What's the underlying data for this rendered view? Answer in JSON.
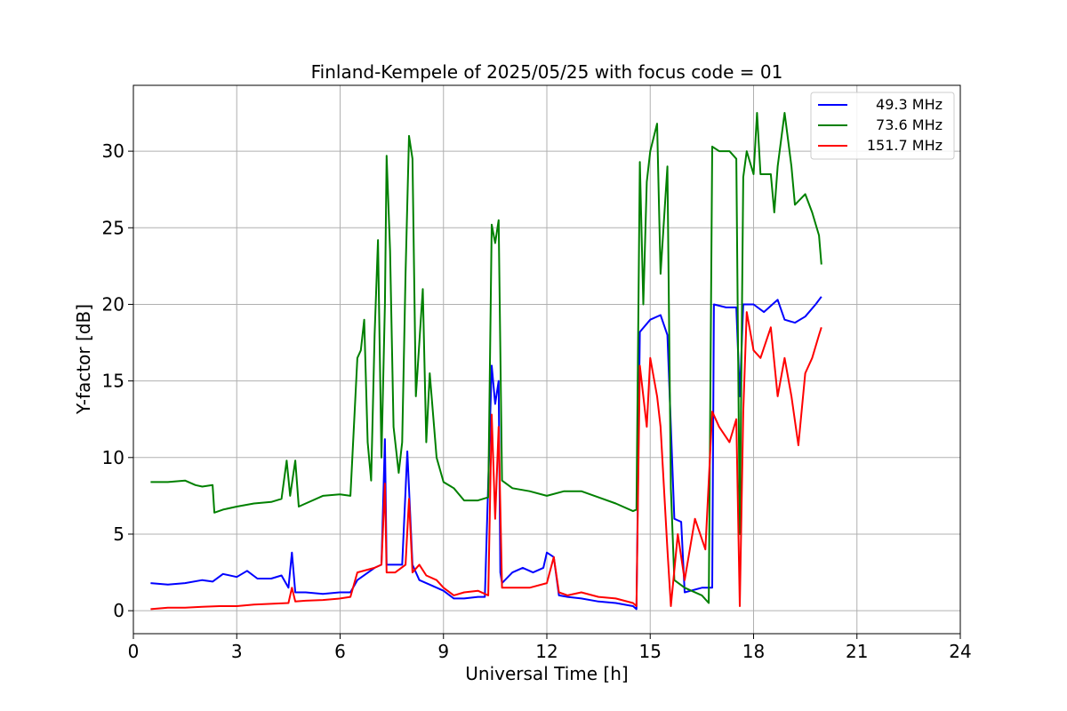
{
  "chart_data": {
    "type": "line",
    "title": "Finland-Kempele of 2025/05/25 with focus code = 01",
    "xlabel": "Universal Time [h]",
    "ylabel": "Y-factor [dB]",
    "xlim": [
      0,
      24
    ],
    "ylim": [
      -1.5,
      34.3
    ],
    "xticks": [
      0,
      3,
      6,
      9,
      12,
      15,
      18,
      21,
      24
    ],
    "yticks": [
      0,
      5,
      10,
      15,
      20,
      25,
      30
    ],
    "grid": true,
    "legend_position": "top-right",
    "series": [
      {
        "name": "49.3 MHz",
        "color": "#0000ff",
        "points": [
          [
            0.5,
            1.8
          ],
          [
            1.0,
            1.7
          ],
          [
            1.5,
            1.8
          ],
          [
            2.0,
            2.0
          ],
          [
            2.3,
            1.9
          ],
          [
            2.6,
            2.4
          ],
          [
            3.0,
            2.2
          ],
          [
            3.3,
            2.6
          ],
          [
            3.6,
            2.1
          ],
          [
            4.0,
            2.1
          ],
          [
            4.3,
            2.3
          ],
          [
            4.5,
            1.5
          ],
          [
            4.6,
            3.8
          ],
          [
            4.7,
            1.2
          ],
          [
            5.0,
            1.2
          ],
          [
            5.5,
            1.1
          ],
          [
            6.0,
            1.2
          ],
          [
            6.3,
            1.2
          ],
          [
            6.5,
            2.0
          ],
          [
            7.0,
            2.8
          ],
          [
            7.2,
            3.0
          ],
          [
            7.3,
            11.2
          ],
          [
            7.35,
            3.0
          ],
          [
            7.5,
            3.0
          ],
          [
            7.8,
            3.0
          ],
          [
            7.95,
            10.4
          ],
          [
            8.1,
            3.0
          ],
          [
            8.3,
            2.0
          ],
          [
            8.6,
            1.7
          ],
          [
            9.0,
            1.3
          ],
          [
            9.3,
            0.8
          ],
          [
            9.6,
            0.8
          ],
          [
            10.0,
            0.9
          ],
          [
            10.2,
            0.9
          ],
          [
            10.4,
            16.0
          ],
          [
            10.5,
            13.5
          ],
          [
            10.6,
            15.0
          ],
          [
            10.65,
            2.5
          ],
          [
            10.7,
            1.8
          ],
          [
            11.0,
            2.5
          ],
          [
            11.3,
            2.8
          ],
          [
            11.6,
            2.5
          ],
          [
            11.9,
            2.8
          ],
          [
            12.0,
            3.8
          ],
          [
            12.2,
            3.5
          ],
          [
            12.35,
            1.0
          ],
          [
            12.6,
            0.9
          ],
          [
            13.0,
            0.8
          ],
          [
            13.5,
            0.6
          ],
          [
            14.0,
            0.5
          ],
          [
            14.5,
            0.3
          ],
          [
            14.6,
            0.1
          ],
          [
            14.7,
            18.2
          ],
          [
            15.0,
            19.0
          ],
          [
            15.3,
            19.3
          ],
          [
            15.5,
            18.0
          ],
          [
            15.7,
            6.0
          ],
          [
            15.9,
            5.8
          ],
          [
            16.0,
            1.2
          ],
          [
            16.5,
            1.5
          ],
          [
            16.8,
            1.5
          ],
          [
            16.85,
            20.0
          ],
          [
            17.2,
            19.8
          ],
          [
            17.5,
            19.8
          ],
          [
            17.6,
            14.0
          ],
          [
            17.7,
            20.0
          ],
          [
            18.0,
            20.0
          ],
          [
            18.3,
            19.5
          ],
          [
            18.7,
            20.3
          ],
          [
            18.9,
            19.0
          ],
          [
            19.2,
            18.8
          ],
          [
            19.5,
            19.2
          ],
          [
            19.8,
            20.0
          ],
          [
            19.97,
            20.5
          ]
        ]
      },
      {
        "name": "73.6 MHz",
        "color": "#008000",
        "points": [
          [
            0.5,
            8.4
          ],
          [
            1.0,
            8.4
          ],
          [
            1.5,
            8.5
          ],
          [
            1.8,
            8.2
          ],
          [
            2.0,
            8.1
          ],
          [
            2.3,
            8.2
          ],
          [
            2.35,
            6.4
          ],
          [
            2.6,
            6.6
          ],
          [
            3.0,
            6.8
          ],
          [
            3.5,
            7.0
          ],
          [
            4.0,
            7.1
          ],
          [
            4.3,
            7.3
          ],
          [
            4.45,
            9.8
          ],
          [
            4.55,
            7.5
          ],
          [
            4.7,
            9.8
          ],
          [
            4.8,
            6.8
          ],
          [
            5.0,
            7.0
          ],
          [
            5.5,
            7.5
          ],
          [
            6.0,
            7.6
          ],
          [
            6.3,
            7.5
          ],
          [
            6.5,
            16.5
          ],
          [
            6.6,
            17.0
          ],
          [
            6.7,
            19.0
          ],
          [
            6.8,
            11.0
          ],
          [
            6.9,
            8.5
          ],
          [
            7.0,
            18.0
          ],
          [
            7.1,
            24.2
          ],
          [
            7.2,
            10.0
          ],
          [
            7.3,
            20.0
          ],
          [
            7.35,
            29.7
          ],
          [
            7.45,
            23.5
          ],
          [
            7.55,
            12.0
          ],
          [
            7.7,
            9.0
          ],
          [
            7.8,
            11.0
          ],
          [
            7.9,
            22.0
          ],
          [
            8.0,
            31.0
          ],
          [
            8.1,
            29.5
          ],
          [
            8.2,
            14.0
          ],
          [
            8.4,
            21.0
          ],
          [
            8.5,
            11.0
          ],
          [
            8.6,
            15.5
          ],
          [
            8.8,
            10.0
          ],
          [
            9.0,
            8.4
          ],
          [
            9.3,
            8.0
          ],
          [
            9.6,
            7.2
          ],
          [
            10.0,
            7.2
          ],
          [
            10.3,
            7.4
          ],
          [
            10.4,
            25.2
          ],
          [
            10.5,
            24.0
          ],
          [
            10.6,
            25.5
          ],
          [
            10.7,
            8.5
          ],
          [
            11.0,
            8.0
          ],
          [
            11.5,
            7.8
          ],
          [
            12.0,
            7.5
          ],
          [
            12.5,
            7.8
          ],
          [
            13.0,
            7.8
          ],
          [
            13.5,
            7.4
          ],
          [
            14.0,
            7.0
          ],
          [
            14.5,
            6.5
          ],
          [
            14.6,
            6.6
          ],
          [
            14.7,
            29.3
          ],
          [
            14.8,
            20.0
          ],
          [
            14.9,
            28.0
          ],
          [
            15.0,
            30.0
          ],
          [
            15.2,
            31.8
          ],
          [
            15.3,
            22.0
          ],
          [
            15.5,
            29.0
          ],
          [
            15.6,
            8.0
          ],
          [
            15.7,
            2.0
          ],
          [
            16.0,
            1.5
          ],
          [
            16.5,
            1.0
          ],
          [
            16.7,
            0.5
          ],
          [
            16.8,
            30.3
          ],
          [
            17.0,
            30.0
          ],
          [
            17.3,
            30.0
          ],
          [
            17.5,
            29.5
          ],
          [
            17.6,
            5.0
          ],
          [
            17.7,
            28.3
          ],
          [
            17.8,
            30.0
          ],
          [
            18.0,
            28.5
          ],
          [
            18.1,
            32.5
          ],
          [
            18.2,
            28.5
          ],
          [
            18.5,
            28.5
          ],
          [
            18.6,
            26.0
          ],
          [
            18.7,
            29.0
          ],
          [
            18.9,
            32.5
          ],
          [
            19.1,
            29.0
          ],
          [
            19.2,
            26.5
          ],
          [
            19.5,
            27.2
          ],
          [
            19.7,
            26.0
          ],
          [
            19.9,
            24.5
          ],
          [
            19.97,
            22.6
          ]
        ]
      },
      {
        "name": "151.7 MHz",
        "color": "#ff0000",
        "points": [
          [
            0.5,
            0.1
          ],
          [
            1.0,
            0.2
          ],
          [
            1.5,
            0.2
          ],
          [
            2.0,
            0.25
          ],
          [
            2.5,
            0.3
          ],
          [
            3.0,
            0.3
          ],
          [
            3.5,
            0.4
          ],
          [
            4.0,
            0.45
          ],
          [
            4.5,
            0.5
          ],
          [
            4.6,
            1.5
          ],
          [
            4.7,
            0.6
          ],
          [
            5.0,
            0.65
          ],
          [
            5.5,
            0.7
          ],
          [
            6.0,
            0.8
          ],
          [
            6.3,
            0.9
          ],
          [
            6.5,
            2.5
          ],
          [
            7.0,
            2.8
          ],
          [
            7.2,
            3.0
          ],
          [
            7.3,
            8.3
          ],
          [
            7.35,
            2.5
          ],
          [
            7.6,
            2.5
          ],
          [
            7.9,
            3.0
          ],
          [
            8.0,
            7.3
          ],
          [
            8.1,
            2.5
          ],
          [
            8.3,
            3.0
          ],
          [
            8.5,
            2.3
          ],
          [
            8.8,
            2.0
          ],
          [
            9.0,
            1.5
          ],
          [
            9.3,
            1.0
          ],
          [
            9.6,
            1.2
          ],
          [
            10.0,
            1.3
          ],
          [
            10.3,
            1.0
          ],
          [
            10.4,
            12.8
          ],
          [
            10.5,
            6.0
          ],
          [
            10.6,
            12.0
          ],
          [
            10.7,
            1.5
          ],
          [
            11.0,
            1.5
          ],
          [
            11.5,
            1.5
          ],
          [
            12.0,
            1.8
          ],
          [
            12.2,
            3.5
          ],
          [
            12.35,
            1.2
          ],
          [
            12.6,
            1.0
          ],
          [
            13.0,
            1.2
          ],
          [
            13.5,
            0.9
          ],
          [
            14.0,
            0.8
          ],
          [
            14.5,
            0.5
          ],
          [
            14.6,
            0.3
          ],
          [
            14.7,
            16.0
          ],
          [
            14.9,
            12.0
          ],
          [
            15.0,
            16.5
          ],
          [
            15.2,
            14.0
          ],
          [
            15.3,
            12.0
          ],
          [
            15.5,
            4.0
          ],
          [
            15.6,
            0.3
          ],
          [
            15.8,
            5.0
          ],
          [
            16.0,
            2.0
          ],
          [
            16.3,
            6.0
          ],
          [
            16.6,
            4.0
          ],
          [
            16.8,
            13.0
          ],
          [
            17.0,
            12.0
          ],
          [
            17.3,
            11.0
          ],
          [
            17.5,
            12.5
          ],
          [
            17.6,
            0.3
          ],
          [
            17.7,
            13.0
          ],
          [
            17.8,
            19.5
          ],
          [
            18.0,
            17.0
          ],
          [
            18.2,
            16.5
          ],
          [
            18.5,
            18.5
          ],
          [
            18.7,
            14.0
          ],
          [
            18.9,
            16.5
          ],
          [
            19.1,
            14.0
          ],
          [
            19.3,
            10.8
          ],
          [
            19.5,
            15.5
          ],
          [
            19.7,
            16.5
          ],
          [
            19.9,
            18.0
          ],
          [
            19.97,
            18.5
          ]
        ]
      }
    ]
  }
}
